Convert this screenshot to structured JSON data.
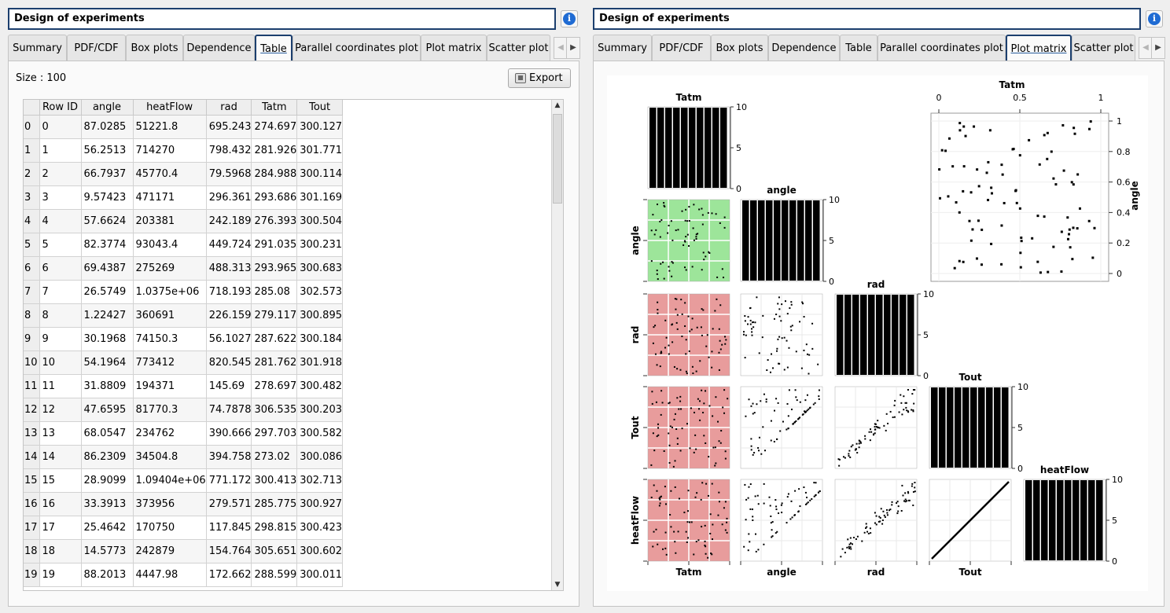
{
  "left_panel": {
    "title": "Design of experiments",
    "tabs": [
      "Summary",
      "PDF/CDF",
      "Box plots",
      "Dependence",
      "Table",
      "Parallel coordinates plot",
      "Plot matrix",
      "Scatter plot"
    ],
    "active_tab": "Table",
    "size_label": "Size : 100",
    "export_label": "Export",
    "table": {
      "columns": [
        "Row ID",
        "angle",
        "heatFlow",
        "rad",
        "Tatm",
        "Tout"
      ],
      "rows": [
        [
          "0",
          "0",
          "87.0285",
          "51221.8",
          "695.243",
          "274.697",
          "300.127"
        ],
        [
          "1",
          "1",
          "56.2513",
          "714270",
          "798.432",
          "281.926",
          "301.771"
        ],
        [
          "2",
          "2",
          "66.7937",
          "45770.4",
          "79.5968",
          "284.988",
          "300.114"
        ],
        [
          "3",
          "3",
          "9.57423",
          "471171",
          "296.361",
          "293.686",
          "301.169"
        ],
        [
          "4",
          "4",
          "57.6624",
          "203381",
          "242.189",
          "276.393",
          "300.504"
        ],
        [
          "5",
          "5",
          "82.3774",
          "93043.4",
          "449.724",
          "291.035",
          "300.231"
        ],
        [
          "6",
          "6",
          "69.4387",
          "275269",
          "488.313",
          "293.965",
          "300.683"
        ],
        [
          "7",
          "7",
          "26.5749",
          "1.0375e+06",
          "718.193",
          "285.08",
          "302.573"
        ],
        [
          "8",
          "8",
          "1.22427",
          "360691",
          "226.159",
          "279.117",
          "300.895"
        ],
        [
          "9",
          "9",
          "30.1968",
          "74150.3",
          "56.1027",
          "287.622",
          "300.184"
        ],
        [
          "10",
          "10",
          "54.1964",
          "773412",
          "820.545",
          "281.762",
          "301.918"
        ],
        [
          "11",
          "11",
          "31.8809",
          "194371",
          "145.69",
          "278.697",
          "300.482"
        ],
        [
          "12",
          "12",
          "47.6595",
          "81770.3",
          "74.7878",
          "306.535",
          "300.203"
        ],
        [
          "13",
          "13",
          "68.0547",
          "234762",
          "390.666",
          "297.703",
          "300.582"
        ],
        [
          "14",
          "14",
          "86.2309",
          "34504.8",
          "394.758",
          "273.02",
          "300.086"
        ],
        [
          "15",
          "15",
          "28.9099",
          "1.09404e+06",
          "771.172",
          "300.413",
          "302.713"
        ],
        [
          "16",
          "16",
          "33.3913",
          "373956",
          "279.571",
          "285.775",
          "300.927"
        ],
        [
          "17",
          "17",
          "25.4642",
          "170750",
          "117.845",
          "298.815",
          "300.423"
        ],
        [
          "18",
          "18",
          "14.5773",
          "242879",
          "154.764",
          "305.651",
          "300.602"
        ],
        [
          "19",
          "19",
          "88.2013",
          "4447.98",
          "172.662",
          "288.599",
          "300.011"
        ]
      ]
    }
  },
  "right_panel": {
    "title": "Design of experiments",
    "tabs": [
      "Summary",
      "PDF/CDF",
      "Box plots",
      "Dependence",
      "Table",
      "Parallel coordinates plot",
      "Plot matrix",
      "Scatter plot"
    ],
    "active_tab": "Plot matrix",
    "plot_matrix": {
      "variables": [
        "Tatm",
        "angle",
        "rad",
        "Tout",
        "heatFlow"
      ],
      "histogram_ticks": [
        "0",
        "5",
        "10"
      ],
      "zoom_plot": {
        "x_label": "Tatm",
        "y_label": "angle",
        "x_ticks": [
          "0",
          "0.5",
          "1"
        ],
        "y_ticks": [
          "0",
          "0.2",
          "0.4",
          "0.6",
          "0.8",
          "1"
        ]
      },
      "colors": {
        "green": "#9de59a",
        "red": "#e89c9c",
        "bar": "#000000"
      }
    }
  }
}
